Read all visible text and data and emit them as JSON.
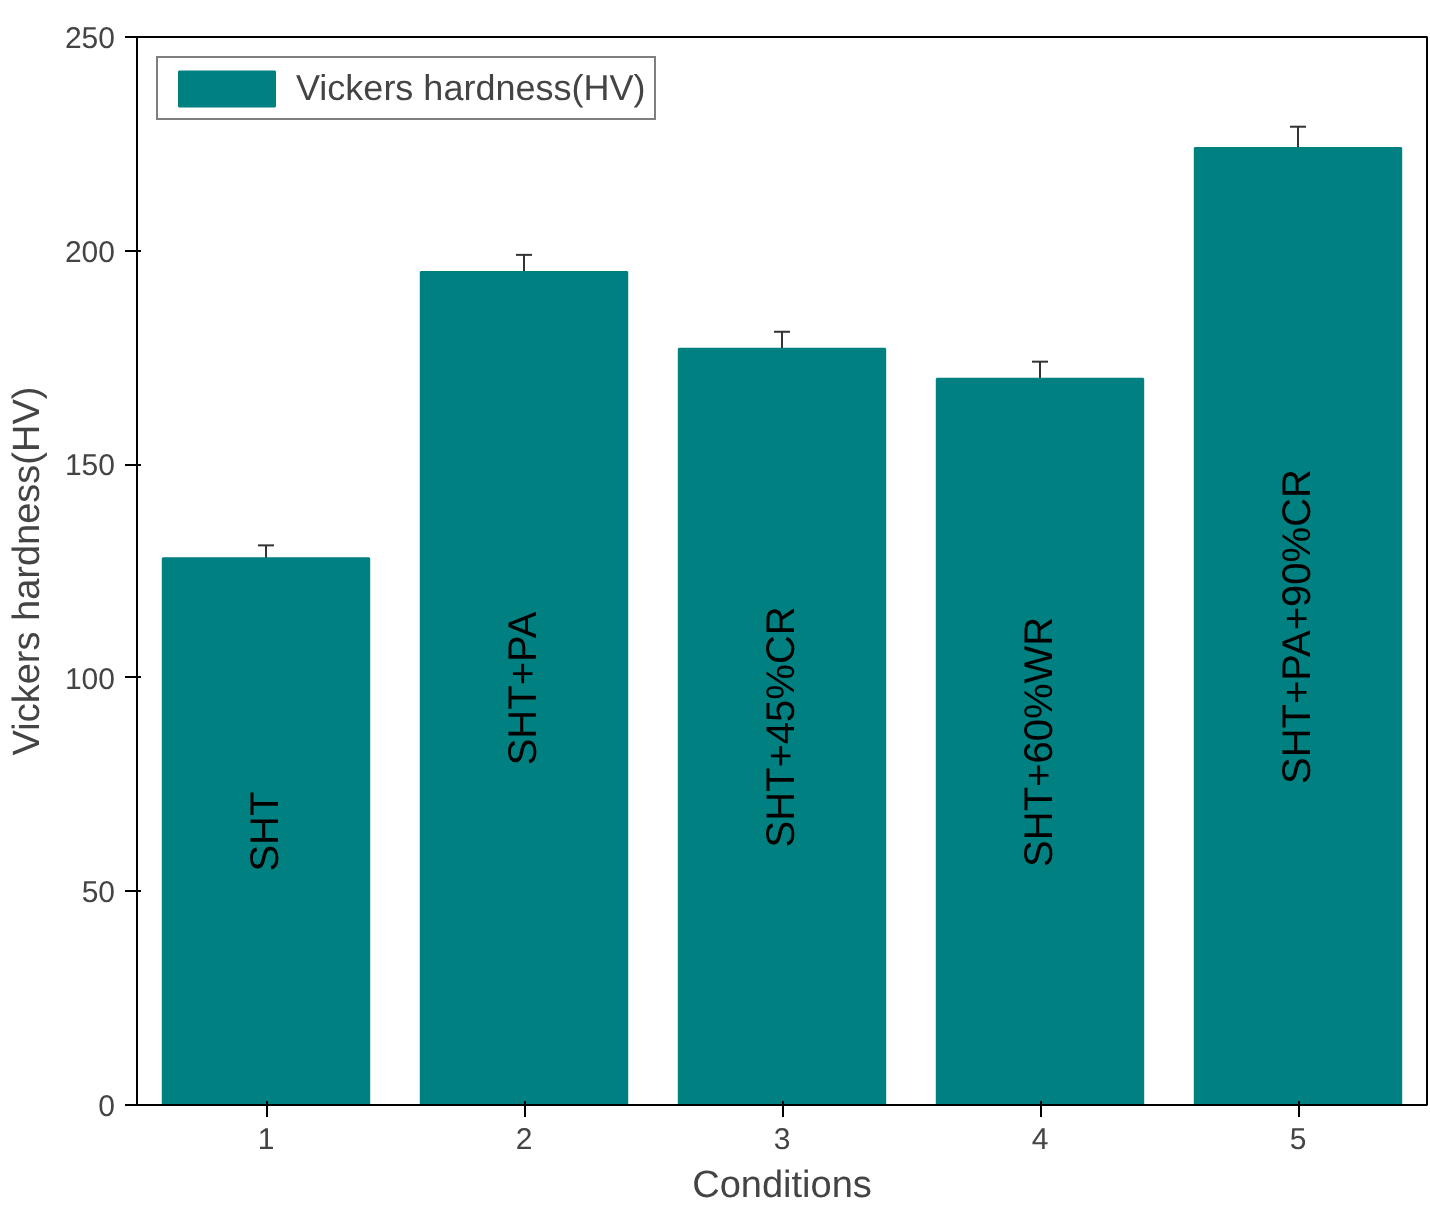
{
  "chart_data": {
    "type": "bar",
    "xlabel": "Conditions",
    "ylabel": "Vickers hardness(HV)",
    "categories": [
      "1",
      "2",
      "3",
      "4",
      "5"
    ],
    "series": [
      {
        "name": "Vickers hardness(HV)",
        "color": "#008080",
        "values": [
          128,
          195,
          177,
          170,
          224
        ],
        "errors": [
          3,
          4,
          4,
          4,
          5
        ]
      }
    ],
    "ylim": [
      0,
      250
    ],
    "yticks": [
      0,
      50,
      100,
      150,
      200,
      250
    ],
    "grid": false,
    "legend": "top left",
    "annotations": [
      "SHT",
      "SHT+PA",
      "SHT+45%CR",
      "SHT+60%WR",
      "SHT+PA+90%CR"
    ]
  }
}
